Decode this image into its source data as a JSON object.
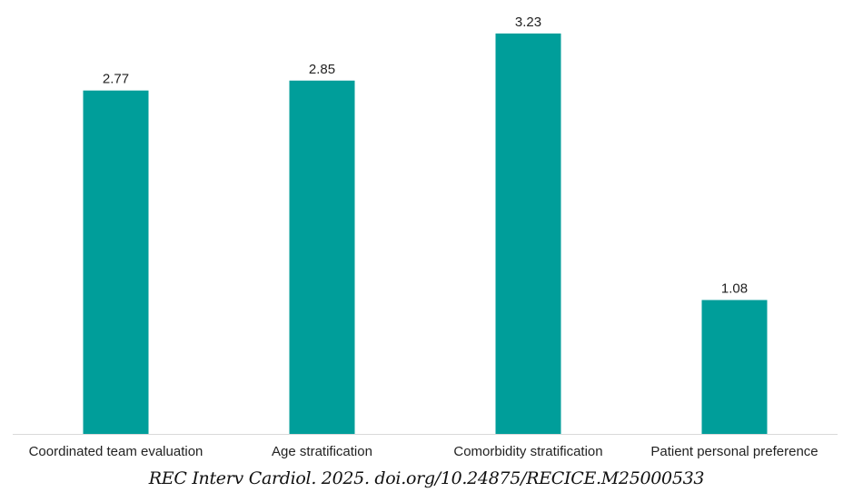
{
  "chart_data": {
    "type": "bar",
    "title": "",
    "xlabel": "",
    "ylabel": "",
    "categories": [
      "Coordinated team evaluation",
      "Age stratification",
      "Comorbidity stratification",
      "Patient personal preference"
    ],
    "values": [
      2.77,
      2.85,
      3.23,
      1.08
    ],
    "data_labels": [
      "2.77",
      "2.85",
      "3.23",
      "1.08"
    ],
    "ylim": [
      0,
      3.5
    ],
    "grid": false,
    "legend": "none",
    "bar_color": "#009e9a",
    "axis_color": "#d9d9d9"
  },
  "citation": "REC Interv Cardiol. 2025. doi.org/10.24875/RECICE.M25000533"
}
